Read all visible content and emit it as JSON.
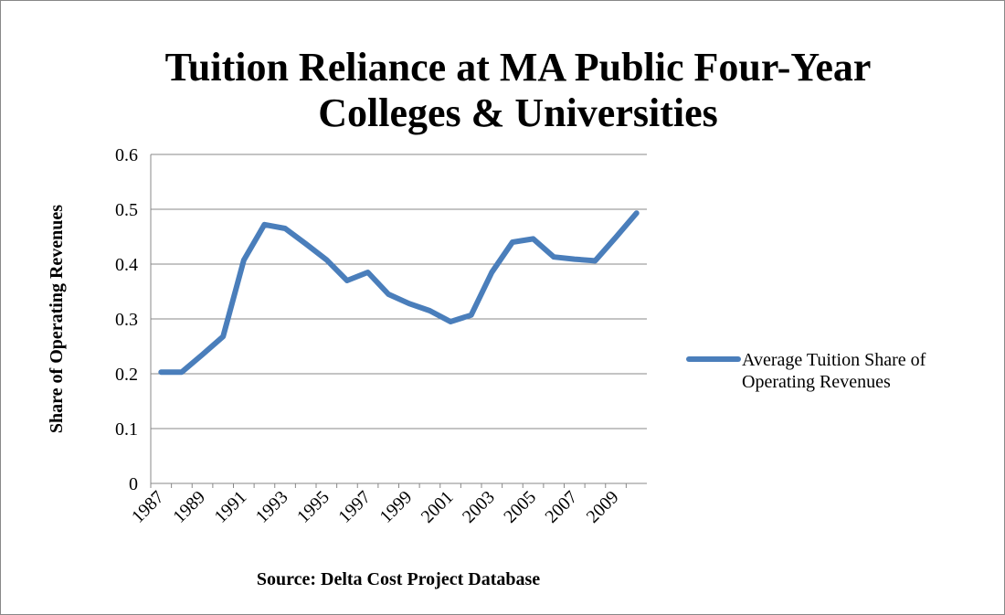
{
  "chart_data": {
    "type": "line",
    "title": "Tuition Reliance at MA Public Four-Year Colleges & Universities",
    "y_label": "Share of Operating Revenues",
    "x_label": "Source: Delta Cost Project Database",
    "categories": [
      "1987",
      null,
      "1989",
      null,
      "1991",
      null,
      "1993",
      null,
      "1995",
      null,
      "1997",
      null,
      "1999",
      null,
      "2001",
      null,
      "2003",
      null,
      "2005",
      null,
      "2007",
      null,
      "2009",
      null
    ],
    "series": [
      {
        "name": "Average Tuition Share of Operating Revenues",
        "color": "#4a7ebb",
        "values": [
          0.203,
          0.203,
          0.235,
          0.268,
          0.407,
          0.472,
          0.465,
          0.437,
          0.408,
          0.37,
          0.385,
          0.345,
          0.328,
          0.315,
          0.295,
          0.307,
          0.385,
          0.44,
          0.446,
          0.413,
          0.409,
          0.406,
          0.449,
          0.493
        ]
      }
    ],
    "ylim": [
      0,
      0.6
    ],
    "yticks": [
      0,
      0.1,
      0.2,
      0.3,
      0.4,
      0.5,
      0.6
    ],
    "grid": true,
    "legend": "right"
  }
}
